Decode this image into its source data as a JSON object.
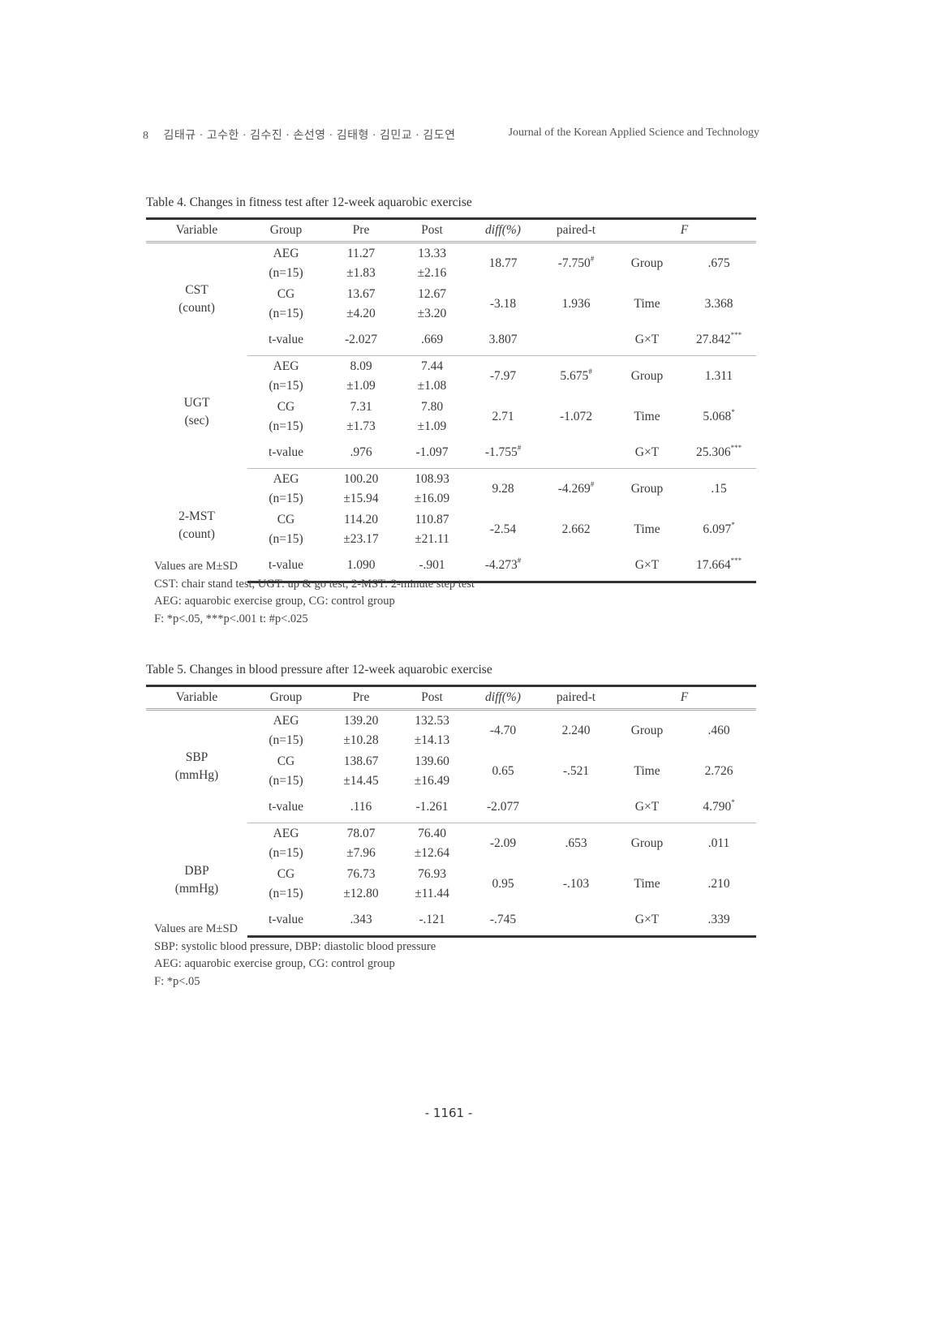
{
  "header": {
    "page": "8",
    "authors": "김태규 · 고수한 · 김수진 · 손선영 · 김태형 · 김민교 · 김도연",
    "journal": "Journal of the Korean Applied Science and Technology"
  },
  "columns": [
    "Variable",
    "Group",
    "Pre",
    "Post",
    "diff(%)",
    "paired-t",
    "F"
  ],
  "tables": [
    {
      "caption": "Table 4. Changes in fitness test after 12-week aquarobic exercise",
      "sections": [
        {
          "variable": "CST",
          "unit": "(count)",
          "rows": [
            {
              "group": "AEG",
              "n": "(n=15)",
              "pre": "11.27",
              "pre_sd": "±1.83",
              "post": "13.33",
              "post_sd": "±2.16",
              "diff": "18.77",
              "diff_sup": "",
              "paired": "-7.750",
              "paired_sup": "#",
              "f_label": "Group",
              "f_value": ".675",
              "f_sup": ""
            },
            {
              "group": "CG",
              "n": "(n=15)",
              "pre": "13.67",
              "pre_sd": "±4.20",
              "post": "12.67",
              "post_sd": "±3.20",
              "diff": "-3.18",
              "diff_sup": "",
              "paired": "1.936",
              "paired_sup": "",
              "f_label": "Time",
              "f_value": "3.368",
              "f_sup": ""
            },
            {
              "group": "t-value",
              "pre": "-2.027",
              "post": ".669",
              "diff": "3.807",
              "diff_sup": "",
              "f_label": "G×T",
              "f_value": "27.842",
              "f_sup": "***"
            }
          ]
        },
        {
          "variable": "UGT",
          "unit": "(sec)",
          "rows": [
            {
              "group": "AEG",
              "n": "(n=15)",
              "pre": "8.09",
              "pre_sd": "±1.09",
              "post": "7.44",
              "post_sd": "±1.08",
              "diff": "-7.97",
              "diff_sup": "",
              "paired": "5.675",
              "paired_sup": "#",
              "f_label": "Group",
              "f_value": "1.311",
              "f_sup": ""
            },
            {
              "group": "CG",
              "n": "(n=15)",
              "pre": "7.31",
              "pre_sd": "±1.73",
              "post": "7.80",
              "post_sd": "±1.09",
              "diff": "2.71",
              "diff_sup": "",
              "paired": "-1.072",
              "paired_sup": "",
              "f_label": "Time",
              "f_value": "5.068",
              "f_sup": "*"
            },
            {
              "group": "t-value",
              "pre": ".976",
              "post": "-1.097",
              "diff": "-1.755",
              "diff_sup": "#",
              "f_label": "G×T",
              "f_value": "25.306",
              "f_sup": "***"
            }
          ]
        },
        {
          "variable": "2-MST",
          "unit": "(count)",
          "rows": [
            {
              "group": "AEG",
              "n": "(n=15)",
              "pre": "100.20",
              "pre_sd": "±15.94",
              "post": "108.93",
              "post_sd": "±16.09",
              "diff": "9.28",
              "diff_sup": "",
              "paired": "-4.269",
              "paired_sup": "#",
              "f_label": "Group",
              "f_value": ".15",
              "f_sup": ""
            },
            {
              "group": "CG",
              "n": "(n=15)",
              "pre": "114.20",
              "pre_sd": "±23.17",
              "post": "110.87",
              "post_sd": "±21.11",
              "diff": "-2.54",
              "diff_sup": "",
              "paired": "2.662",
              "paired_sup": "",
              "f_label": "Time",
              "f_value": "6.097",
              "f_sup": "*"
            },
            {
              "group": "t-value",
              "pre": "1.090",
              "post": "-.901",
              "diff": "-4.273",
              "diff_sup": "#",
              "f_label": "G×T",
              "f_value": "17.664",
              "f_sup": "***"
            }
          ]
        }
      ],
      "notes": [
        "Values are M±SD",
        "CST: chair stand test, UGT: up & go test, 2-MST: 2-minute step test",
        "AEG: aquarobic exercise group, CG: control group",
        "F: *p<.05, ***p<.001 t: #p<.025"
      ]
    },
    {
      "caption": "Table 5. Changes in blood pressure after 12-week aquarobic exercise",
      "sections": [
        {
          "variable": "SBP",
          "unit": "(mmHg)",
          "rows": [
            {
              "group": "AEG",
              "n": "(n=15)",
              "pre": "139.20",
              "pre_sd": "±10.28",
              "post": "132.53",
              "post_sd": "±14.13",
              "diff": "-4.70",
              "diff_sup": "",
              "paired": "2.240",
              "paired_sup": "",
              "f_label": "Group",
              "f_value": ".460",
              "f_sup": ""
            },
            {
              "group": "CG",
              "n": "(n=15)",
              "pre": "138.67",
              "pre_sd": "±14.45",
              "post": "139.60",
              "post_sd": "±16.49",
              "diff": "0.65",
              "diff_sup": "",
              "paired": "-.521",
              "paired_sup": "",
              "f_label": "Time",
              "f_value": "2.726",
              "f_sup": ""
            },
            {
              "group": "t-value",
              "pre": ".116",
              "post": "-1.261",
              "diff": "-2.077",
              "diff_sup": "",
              "f_label": "G×T",
              "f_value": "4.790",
              "f_sup": "*"
            }
          ]
        },
        {
          "variable": "DBP",
          "unit": "(mmHg)",
          "rows": [
            {
              "group": "AEG",
              "n": "(n=15)",
              "pre": "78.07",
              "pre_sd": "±7.96",
              "post": "76.40",
              "post_sd": "±12.64",
              "diff": "-2.09",
              "diff_sup": "",
              "paired": ".653",
              "paired_sup": "",
              "f_label": "Group",
              "f_value": ".011",
              "f_sup": ""
            },
            {
              "group": "CG",
              "n": "(n=15)",
              "pre": "76.73",
              "pre_sd": "±12.80",
              "post": "76.93",
              "post_sd": "±11.44",
              "diff": "0.95",
              "diff_sup": "",
              "paired": "-.103",
              "paired_sup": "",
              "f_label": "Time",
              "f_value": ".210",
              "f_sup": ""
            },
            {
              "group": "t-value",
              "pre": ".343",
              "post": "-.121",
              "diff": "-.745",
              "diff_sup": "",
              "f_label": "G×T",
              "f_value": ".339",
              "f_sup": ""
            }
          ]
        }
      ],
      "notes": [
        "Values are M±SD",
        "SBP: systolic blood pressure, DBP: diastolic blood pressure",
        "AEG: aquarobic exercise group, CG: control group",
        "F: *p<.05"
      ]
    }
  ],
  "footer": {
    "page_number": "- 1161 -"
  }
}
